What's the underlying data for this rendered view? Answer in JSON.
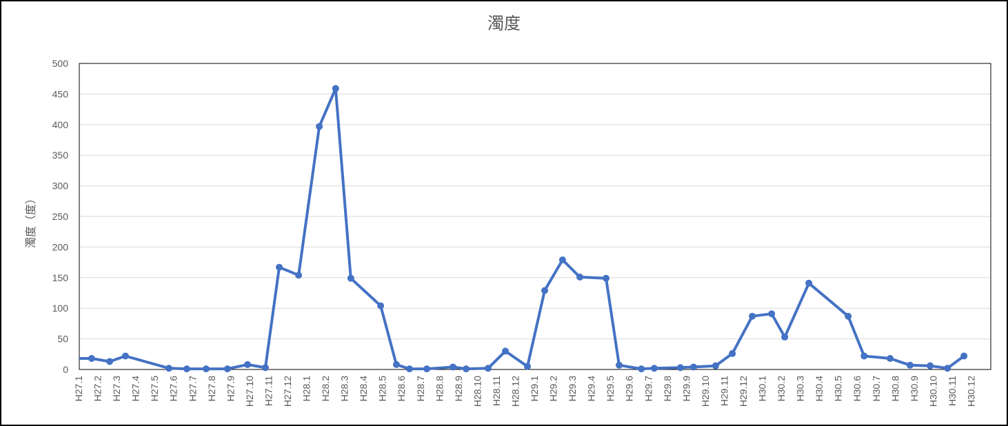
{
  "chart_data": {
    "type": "line",
    "title": "濁度",
    "y_label": "濁度（度）",
    "x": [
      0,
      0.65,
      1.6,
      2.43,
      4.72,
      5.66,
      6.68,
      7.8,
      8.86,
      9.8,
      10.53,
      11.55,
      12.64,
      13.5,
      14.3,
      15.87,
      16.7,
      17.39,
      18.3,
      19.68,
      20.37,
      21.53,
      22.44,
      23.6,
      24.51,
      25.45,
      26.36,
      27.74,
      28.43,
      29.6,
      30.28,
      31.66,
      32.35,
      33.51,
      34.39,
      35.44,
      36.46,
      37.15,
      38.42,
      40.49,
      41.33,
      42.7,
      43.75,
      44.81,
      45.72,
      46.59
    ],
    "values": [
      18,
      18,
      13,
      22,
      2,
      1,
      1,
      1,
      8,
      3,
      167,
      154,
      397,
      459,
      149,
      104,
      8,
      1,
      1,
      4,
      1,
      2,
      30,
      5,
      129,
      179,
      151,
      149,
      7,
      1,
      2,
      3,
      4,
      6,
      26,
      87,
      91,
      53,
      141,
      87,
      22,
      18,
      7,
      6,
      2,
      22
    ],
    "color": "#4472c4",
    "xlim": [
      0,
      48
    ],
    "xticks": [
      {
        "value": 0,
        "label": "H27.1"
      },
      {
        "value": 1,
        "label": "H27.2"
      },
      {
        "value": 2,
        "label": "H27.3"
      },
      {
        "value": 3,
        "label": "H27.4"
      },
      {
        "value": 4,
        "label": "H27.5"
      },
      {
        "value": 5,
        "label": "H27.6"
      },
      {
        "value": 6,
        "label": "H27.7"
      },
      {
        "value": 7,
        "label": "H27.8"
      },
      {
        "value": 8,
        "label": "H27.9"
      },
      {
        "value": 9,
        "label": "H27.10"
      },
      {
        "value": 10,
        "label": "H27.11"
      },
      {
        "value": 11,
        "label": "H27.12"
      },
      {
        "value": 12,
        "label": "H28.1"
      },
      {
        "value": 13,
        "label": "H28.2"
      },
      {
        "value": 14,
        "label": "H28.3"
      },
      {
        "value": 15,
        "label": "H28.4"
      },
      {
        "value": 16,
        "label": "H28.5"
      },
      {
        "value": 17,
        "label": "H28.6"
      },
      {
        "value": 18,
        "label": "H28.7"
      },
      {
        "value": 19,
        "label": "H28.8"
      },
      {
        "value": 20,
        "label": "H28.9"
      },
      {
        "value": 21,
        "label": "H28.10"
      },
      {
        "value": 22,
        "label": "H28.11"
      },
      {
        "value": 23,
        "label": "H28.12"
      },
      {
        "value": 24,
        "label": "H29.1"
      },
      {
        "value": 25,
        "label": "H29.2"
      },
      {
        "value": 26,
        "label": "H29.3"
      },
      {
        "value": 27,
        "label": "H29.4"
      },
      {
        "value": 28,
        "label": "H29.5"
      },
      {
        "value": 29,
        "label": "H29.6"
      },
      {
        "value": 30,
        "label": "H29.7"
      },
      {
        "value": 31,
        "label": "H29.8"
      },
      {
        "value": 32,
        "label": "H29.9"
      },
      {
        "value": 33,
        "label": "H29.10"
      },
      {
        "value": 34,
        "label": "H29.11"
      },
      {
        "value": 35,
        "label": "H29.12"
      },
      {
        "value": 36,
        "label": "H30.1"
      },
      {
        "value": 37,
        "label": "H30.2"
      },
      {
        "value": 38,
        "label": "H30.3"
      },
      {
        "value": 39,
        "label": "H30.4"
      },
      {
        "value": 40,
        "label": "H30.5"
      },
      {
        "value": 41,
        "label": "H30.6"
      },
      {
        "value": 42,
        "label": "H30.7"
      },
      {
        "value": 43,
        "label": "H30.8"
      },
      {
        "value": 44,
        "label": "H30.9"
      },
      {
        "value": 45,
        "label": "H30.10"
      },
      {
        "value": 46,
        "label": "H30.11"
      },
      {
        "value": 47,
        "label": "H30.12"
      }
    ],
    "ylim": [
      0,
      500
    ],
    "yticks": [
      0,
      50,
      100,
      150,
      200,
      250,
      300,
      350,
      400,
      450,
      500
    ],
    "grid": true
  }
}
